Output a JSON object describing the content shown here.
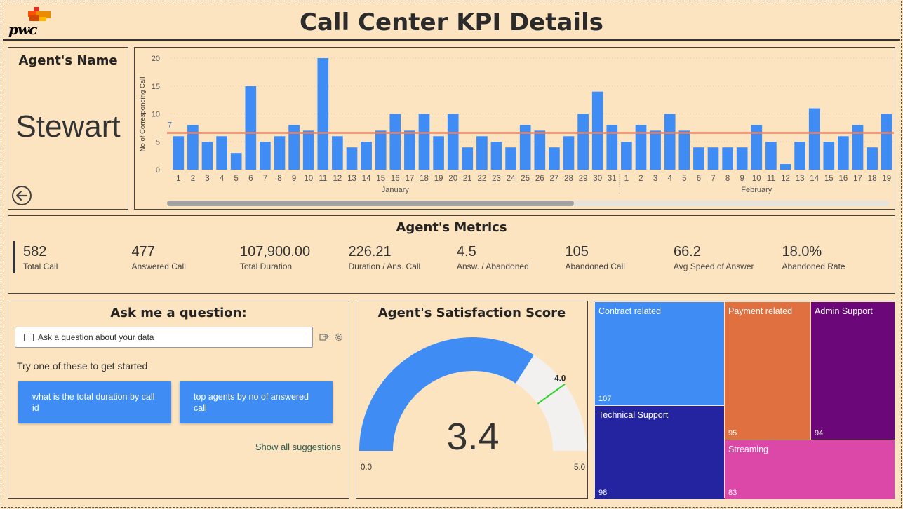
{
  "header": {
    "title": "Call Center KPI Details",
    "logo_text": "pwc"
  },
  "agent_card": {
    "label": "Agent's Name",
    "name": "Stewart"
  },
  "chart_data": {
    "type": "bar",
    "ylabel": "No of Corresponding Call",
    "ylim": [
      0,
      20
    ],
    "yticks": [
      0,
      5,
      10,
      15,
      20
    ],
    "reference_line": {
      "value": 6.6,
      "label": "7",
      "color": "#f08060"
    },
    "bar_color": "#3f8cf5",
    "groups": [
      {
        "name": "January",
        "days": [
          "1",
          "2",
          "3",
          "4",
          "5",
          "6",
          "7",
          "8",
          "9",
          "10",
          "11",
          "12",
          "13",
          "14",
          "15",
          "16",
          "17",
          "18",
          "19",
          "20",
          "21",
          "22",
          "23",
          "24",
          "25",
          "26",
          "27",
          "28",
          "29",
          "30",
          "31"
        ]
      },
      {
        "name": "February",
        "days": [
          "1",
          "2",
          "3",
          "4",
          "5",
          "6",
          "7",
          "8",
          "9",
          "10",
          "11",
          "12",
          "13",
          "14",
          "15",
          "16",
          "17",
          "18",
          "19"
        ]
      }
    ],
    "values": [
      6,
      8,
      5,
      6,
      3,
      15,
      5,
      6,
      8,
      7,
      20,
      6,
      4,
      5,
      7,
      10,
      7,
      10,
      6,
      10,
      4,
      6,
      5,
      4,
      8,
      7,
      4,
      6,
      10,
      14,
      8,
      5,
      8,
      7,
      10,
      7,
      4,
      4,
      4,
      4,
      8,
      5,
      1,
      5,
      11,
      5,
      6,
      8,
      4,
      10
    ]
  },
  "metrics": {
    "title": "Agent's Metrics",
    "items": [
      {
        "value": "582",
        "label": "Total Call"
      },
      {
        "value": "477",
        "label": "Answered Call"
      },
      {
        "value": "107,900.00",
        "label": "Total Duration"
      },
      {
        "value": "226.21",
        "label": "Duration / Ans. Call"
      },
      {
        "value": "4.5",
        "label": "Answ. / Abandoned"
      },
      {
        "value": "105",
        "label": "Abandoned Call"
      },
      {
        "value": "66.2",
        "label": "Avg Speed of Answer"
      },
      {
        "value": "18.0%",
        "label": "Abandoned Rate"
      }
    ]
  },
  "qa": {
    "title": "Ask me a question:",
    "placeholder": "Ask a question about your data",
    "try_text": "Try one of these to get started",
    "suggestions": [
      "what is the total duration by call id",
      "top agents by no of answered call"
    ],
    "show_all": "Show all suggestions"
  },
  "gauge": {
    "title": "Agent's Satisfaction Score",
    "value": 3.4,
    "value_text": "3.4",
    "min": 0,
    "min_text": "0.0",
    "max": 5,
    "max_text": "5.0",
    "target": 4,
    "target_text": "4.0",
    "fill_color": "#3f8cf5",
    "track_color": "#f2f1f0",
    "target_color": "#29d129"
  },
  "treemap": {
    "tiles": [
      {
        "label": "Contract related",
        "value": "107",
        "color": "#3f8cf5"
      },
      {
        "label": "Technical Support",
        "value": "98",
        "color": "#2424a0"
      },
      {
        "label": "Payment related",
        "value": "95",
        "color": "#e07040"
      },
      {
        "label": "Streaming",
        "value": "83",
        "color": "#dc48a8"
      },
      {
        "label": "Admin Support",
        "value": "94",
        "color": "#6b0778"
      }
    ]
  }
}
